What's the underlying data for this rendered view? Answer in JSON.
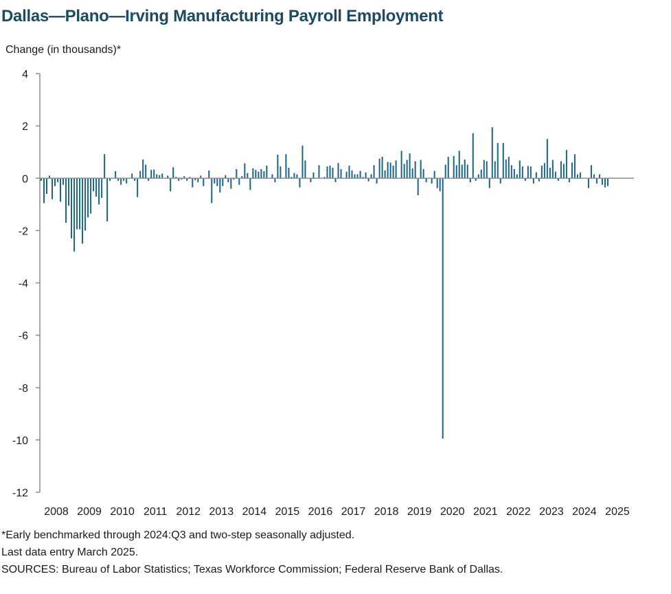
{
  "chart_data": {
    "type": "bar",
    "title": "Dallas—Plano—Irving Manufacturing Payroll Employment",
    "ylabel": "Change (in thousands)*",
    "xlabel": "",
    "ylim": [
      -12,
      4
    ],
    "yticks": [
      4,
      2,
      0,
      -2,
      -4,
      -6,
      -8,
      -10,
      -12
    ],
    "ytick_labels": [
      "4",
      "2",
      "0",
      "-2",
      "-4",
      "-6",
      "-8",
      "-10",
      "-12"
    ],
    "x_labels": [
      "2008",
      "2009",
      "2010",
      "2011",
      "2012",
      "2013",
      "2014",
      "2015",
      "2016",
      "2017",
      "2018",
      "2019",
      "2020",
      "2021",
      "2022",
      "2023",
      "2024",
      "2025"
    ],
    "grid": false,
    "series": [
      {
        "color": "#1b6384",
        "x_start": "2008-01",
        "x_end": "2025-03",
        "frequency": "monthly",
        "values": [
          -0.1,
          -0.95,
          -0.6,
          0.1,
          -0.8,
          -0.3,
          -0.15,
          -0.9,
          -0.25,
          -1.7,
          -1.05,
          -2.3,
          -2.8,
          -1.95,
          -1.95,
          -2.5,
          -2.0,
          -1.5,
          -1.35,
          -0.5,
          -0.7,
          -1.0,
          -0.75,
          0.92,
          -1.65,
          -0.1,
          0.0,
          0.27,
          -0.1,
          -0.25,
          -0.1,
          -0.2,
          0.0,
          0.18,
          -0.1,
          -0.72,
          0.28,
          0.72,
          0.52,
          -0.1,
          0.32,
          0.33,
          0.15,
          0.12,
          0.18,
          0.0,
          0.1,
          -0.5,
          0.42,
          0.05,
          -0.1,
          -0.05,
          0.08,
          -0.1,
          0.05,
          -0.35,
          -0.08,
          -0.15,
          0.1,
          -0.3,
          0.0,
          0.3,
          -0.95,
          -0.2,
          -0.3,
          -0.55,
          -0.3,
          0.12,
          -0.15,
          -0.4,
          -0.05,
          0.35,
          -0.25,
          0.08,
          0.57,
          0.2,
          -0.45,
          0.38,
          0.32,
          0.25,
          0.35,
          0.27,
          0.48,
          0.0,
          0.15,
          -0.15,
          0.9,
          0.45,
          0.0,
          0.92,
          0.4,
          0.05,
          0.2,
          0.15,
          -0.35,
          1.25,
          0.68,
          0.02,
          -0.15,
          0.22,
          0.0,
          0.5,
          0.0,
          0.05,
          0.45,
          0.48,
          0.4,
          -0.15,
          0.58,
          0.35,
          0.0,
          0.25,
          0.48,
          0.3,
          0.15,
          0.15,
          0.28,
          0.05,
          0.22,
          -0.12,
          0.15,
          0.5,
          -0.2,
          0.75,
          0.82,
          0.3,
          0.62,
          0.6,
          0.48,
          0.68,
          0.0,
          1.05,
          0.55,
          0.7,
          0.95,
          0.38,
          0.65,
          -0.65,
          0.7,
          0.35,
          -0.15,
          0.0,
          -0.2,
          0.28,
          -0.38,
          -0.5,
          -9.95,
          0.52,
          0.82,
          0.0,
          0.85,
          0.5,
          1.05,
          0.52,
          0.72,
          0.52,
          -0.15,
          1.72,
          -0.1,
          0.15,
          0.33,
          0.7,
          0.65,
          -0.38,
          1.95,
          0.65,
          1.35,
          -0.2,
          1.35,
          0.72,
          0.82,
          0.5,
          0.35,
          0.15,
          0.68,
          0.45,
          -0.1,
          0.47,
          0.45,
          -0.2,
          0.23,
          -0.12,
          0.48,
          0.58,
          1.5,
          0.4,
          0.7,
          0.25,
          -0.1,
          0.65,
          0.55,
          1.08,
          -0.15,
          0.6,
          0.92,
          0.15,
          0.22,
          0.0,
          0.0,
          -0.38,
          0.5,
          0.15,
          -0.2,
          0.15,
          -0.25,
          -0.35,
          -0.3
        ]
      }
    ]
  },
  "footnotes": {
    "line1": "*Early benchmarked through 2024:Q3  and two-step seasonally adjusted.",
    "line2": "Last data entry March 2025.",
    "line3": "SOURCES:  Bureau of Labor Statistics;  Texas Workforce Commission;  Federal Reserve Bank of Dallas."
  }
}
